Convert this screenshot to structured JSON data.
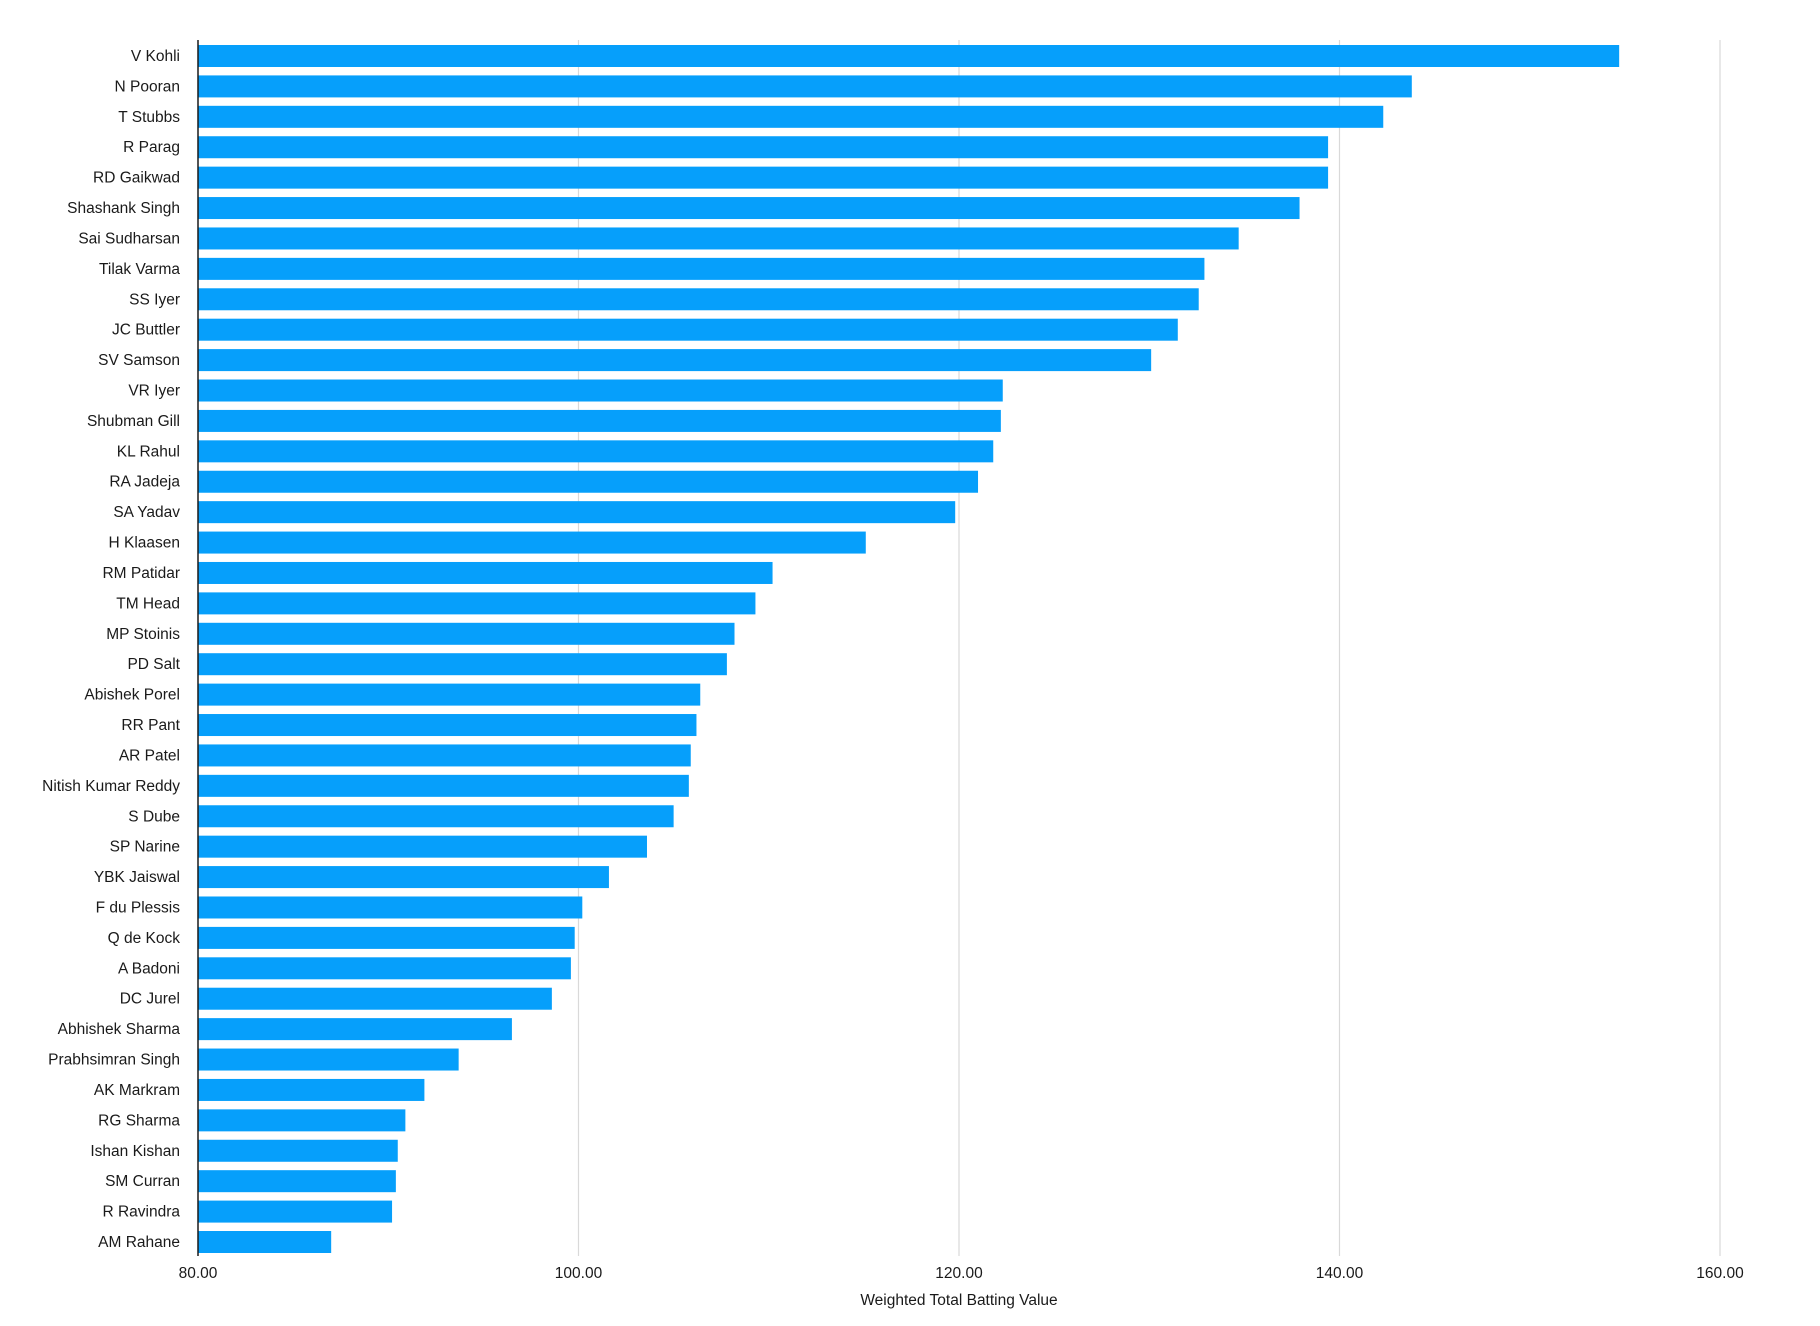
{
  "chart_data": {
    "type": "bar",
    "orientation": "horizontal",
    "title": "",
    "xlabel": "Weighted Total Batting Value",
    "ylabel": "",
    "xlim": [
      80,
      160
    ],
    "x_ticks": [
      "80.00",
      "100.00",
      "120.00",
      "140.00",
      "160.00"
    ],
    "x_tick_values": [
      80,
      100,
      120,
      140,
      160
    ],
    "grid": "vertical",
    "legend": "none",
    "bar_color": "#069ffb",
    "categories": [
      "V Kohli",
      "N Pooran",
      "T Stubbs",
      "R Parag",
      "RD Gaikwad",
      "Shashank Singh",
      "Sai Sudharsan",
      "Tilak Varma",
      "SS Iyer",
      "JC Buttler",
      "SV Samson",
      "VR Iyer",
      "Shubman Gill",
      "KL Rahul",
      "RA Jadeja",
      "SA Yadav",
      "H Klaasen",
      "RM Patidar",
      "TM Head",
      "MP Stoinis",
      "PD Salt",
      "Abishek Porel",
      "RR Pant",
      "AR Patel",
      "Nitish Kumar Reddy",
      "S Dube",
      "SP Narine",
      "YBK Jaiswal",
      "F du Plessis",
      "Q de Kock",
      "A Badoni",
      "DC Jurel",
      "Abhishek Sharma",
      "Prabhsimran Singh",
      "AK Markram",
      "RG Sharma",
      "Ishan Kishan",
      "SM Curran",
      "R Ravindra",
      "AM Rahane"
    ],
    "values": [
      154.7,
      143.8,
      142.3,
      139.4,
      139.4,
      137.9,
      134.7,
      132.9,
      132.6,
      131.5,
      130.1,
      122.3,
      122.2,
      121.8,
      121.0,
      119.8,
      115.1,
      110.2,
      109.3,
      108.2,
      107.8,
      106.4,
      106.2,
      105.9,
      105.8,
      105.0,
      103.6,
      101.6,
      100.2,
      99.8,
      99.6,
      98.6,
      96.5,
      93.7,
      91.9,
      90.9,
      90.5,
      90.4,
      90.2,
      87.0
    ]
  }
}
